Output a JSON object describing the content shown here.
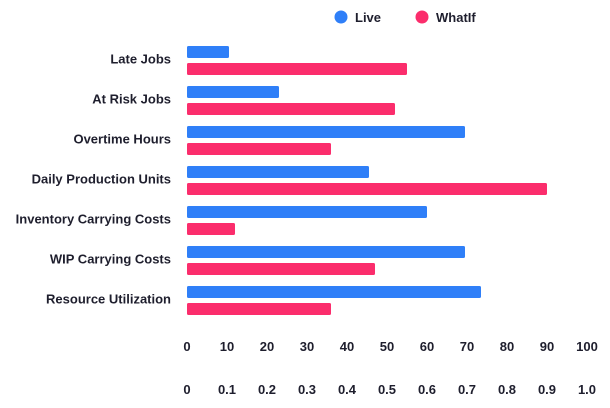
{
  "chart_data": {
    "type": "bar",
    "orientation": "horizontal",
    "categories": [
      "Late Jobs",
      "At Risk Jobs",
      "Overtime Hours",
      "Daily Production Units",
      "Inventory Carrying Costs",
      "WIP Carrying Costs",
      "Resource Utilization"
    ],
    "series": [
      {
        "name": "Live",
        "color": "#2f7ff8",
        "values": [
          10.5,
          23,
          69.5,
          45.5,
          60,
          69.5,
          73.5
        ]
      },
      {
        "name": "WhatIf",
        "color": "#fb2d6c",
        "values": [
          55,
          52,
          36,
          90,
          12,
          47,
          36
        ]
      }
    ],
    "xlim": [
      0,
      100
    ],
    "xticks": [
      "0",
      "10",
      "20",
      "30",
      "40",
      "50",
      "60",
      "70",
      "80",
      "90",
      "100"
    ],
    "xticks_secondary": [
      "0",
      "0.1",
      "0.2",
      "0.3",
      "0.4",
      "0.5",
      "0.6",
      "0.7",
      "0.8",
      "0.9",
      "1.0"
    ],
    "grid": false,
    "legend_position": "top-right"
  }
}
